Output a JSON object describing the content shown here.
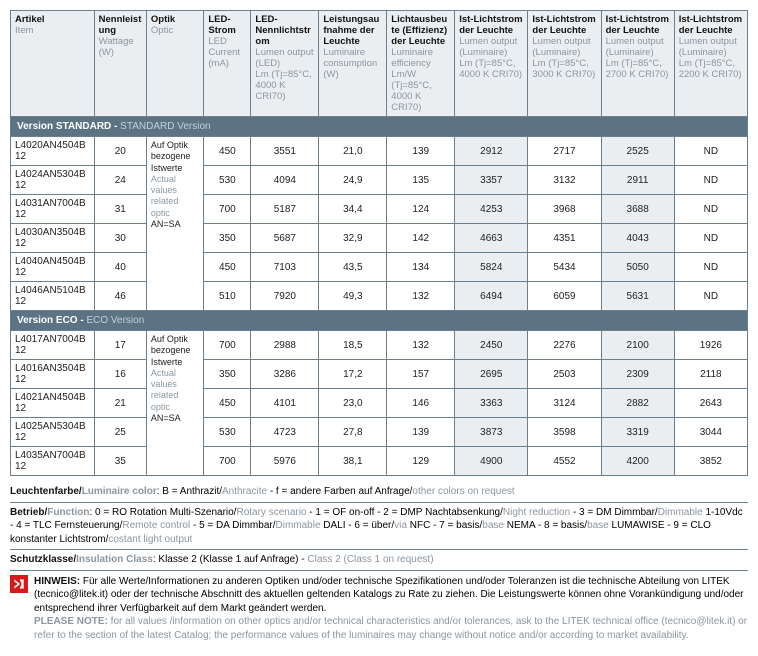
{
  "colors": {
    "header_bg": "#eaeef1",
    "section_bg": "#5c7383",
    "border": "#6a8090",
    "alt_bg": "#eaeef1",
    "text_muted": "#8b96a0",
    "hinweis_red": "#d7191c"
  },
  "headers": [
    {
      "de": "Artikel",
      "en": "Item"
    },
    {
      "de": "Nennleistung",
      "en": "Wattage",
      "unit": "(W)"
    },
    {
      "de": "Optik",
      "en": "Optic"
    },
    {
      "de": "LED-Strom",
      "en": "LED Current",
      "unit": "(mA)"
    },
    {
      "de": "LED-Nennlichtstrom",
      "en": "Lumen output (LED)",
      "unit": "Lm (Tj=85°C, 4000 K CRI70)"
    },
    {
      "de": "Leistungsaufnahme der Leuchte",
      "en": "Luminaire consumption",
      "unit": "(W)"
    },
    {
      "de": "Lichtausbeute (Effizienz) der Leuchte",
      "en": "Luminaire efficiency",
      "unit": "Lm/W (Tj=85°C, 4000 K CRI70)"
    },
    {
      "de": "Ist-Lichtstrom der Leuchte",
      "en": "Lumen output (Luminaire)",
      "unit": "Lm (Tj=85°C, 4000 K CRI70)"
    },
    {
      "de": "Ist-Lichtstrom der Leuchte",
      "en": "Lumen output (Luminaire)",
      "unit": "Lm (Tj=85°C, 3000 K CRI70)"
    },
    {
      "de": "Ist-Lichtstrom der Leuchte",
      "en": "Lumen output (Luminaire)",
      "unit": "Lm (Tj=85°C, 2700 K CRI70)"
    },
    {
      "de": "Ist-Lichtstrom der Leuchte",
      "en": "Lumen output (Luminaire)",
      "unit": "Lm (Tj=85°C, 2200 K CRI70)"
    }
  ],
  "optic_text": {
    "de1": "Auf Optik bezogene Istwerte",
    "en1": "Actual values related optic",
    "eq": "AN=SA"
  },
  "sections": [
    {
      "title_de": "Version STANDARD",
      "title_en": "STANDARD Version",
      "rows": [
        {
          "article": "L4020AN4504B12",
          "w": "20",
          "led": "450",
          "lumen": "3551",
          "power": "21,0",
          "eff": "139",
          "lm1": "2912",
          "lm2": "2717",
          "lm3": "2525",
          "lm4": "ND"
        },
        {
          "article": "L4024AN5304B12",
          "w": "24",
          "led": "530",
          "lumen": "4094",
          "power": "24,9",
          "eff": "135",
          "lm1": "3357",
          "lm2": "3132",
          "lm3": "2911",
          "lm4": "ND"
        },
        {
          "article": "L4031AN7004B12",
          "w": "31",
          "led": "700",
          "lumen": "5187",
          "power": "34,4",
          "eff": "124",
          "lm1": "4253",
          "lm2": "3968",
          "lm3": "3688",
          "lm4": "ND"
        },
        {
          "article": "L4030AN3504B12",
          "w": "30",
          "led": "350",
          "lumen": "5687",
          "power": "32,9",
          "eff": "142",
          "lm1": "4663",
          "lm2": "4351",
          "lm3": "4043",
          "lm4": "ND"
        },
        {
          "article": "L4040AN4504B12",
          "w": "40",
          "led": "450",
          "lumen": "7103",
          "power": "43,5",
          "eff": "134",
          "lm1": "5824",
          "lm2": "5434",
          "lm3": "5050",
          "lm4": "ND"
        },
        {
          "article": "L4046AN5104B12",
          "w": "46",
          "led": "510",
          "lumen": "7920",
          "power": "49,3",
          "eff": "132",
          "lm1": "6494",
          "lm2": "6059",
          "lm3": "5631",
          "lm4": "ND"
        }
      ]
    },
    {
      "title_de": "Version ECO",
      "title_en": "ECO Version",
      "rows": [
        {
          "article": "L4017AN7004B12",
          "w": "17",
          "led": "700",
          "lumen": "2988",
          "power": "18,5",
          "eff": "132",
          "lm1": "2450",
          "lm2": "2276",
          "lm3": "2100",
          "lm4": "1926"
        },
        {
          "article": "L4016AN3504B12",
          "w": "16",
          "led": "350",
          "lumen": "3286",
          "power": "17,2",
          "eff": "157",
          "lm1": "2695",
          "lm2": "2503",
          "lm3": "2309",
          "lm4": "2118"
        },
        {
          "article": "L4021AN4504B12",
          "w": "21",
          "led": "450",
          "lumen": "4101",
          "power": "23,0",
          "eff": "146",
          "lm1": "3363",
          "lm2": "3124",
          "lm3": "2882",
          "lm4": "2643"
        },
        {
          "article": "L4025AN5304B12",
          "w": "25",
          "led": "530",
          "lumen": "4723",
          "power": "27,8",
          "eff": "139",
          "lm1": "3873",
          "lm2": "3598",
          "lm3": "3319",
          "lm4": "3044"
        },
        {
          "article": "L4035AN7004B12",
          "w": "35",
          "led": "700",
          "lumen": "5976",
          "power": "38,1",
          "eff": "129",
          "lm1": "4900",
          "lm2": "4552",
          "lm3": "4200",
          "lm4": "3852"
        }
      ]
    }
  ],
  "notes": {
    "color": {
      "label_de": "Leuchtenfarbe",
      "label_en": "Luminaire color",
      "text_de": ": B = Anthrazit/",
      "text_en1": "Anthracite",
      "text_de2": " - f = andere Farben auf Anfrage/",
      "text_en2": "other colors on request"
    },
    "function": {
      "label_de": "Betrieb",
      "label_en": "Function",
      "text": ": 0 = RO Rotation Multi-Szenario/",
      "en1": "Rotary scenario",
      "t2": " - 1 = OF on-off - 2 = DMP Nachtabsenkung/",
      "en2": "Night reduction",
      "t3": " - 3 = DM Dimmbar/",
      "en3": "Dimmable",
      "t4": " 1-10Vdc - 4 = TLC Fernsteuerung/",
      "en4": "Remote control",
      "t5": " - 5 = DA Dimmbar/",
      "en5": "Dimmable",
      "t6": " DALI - 6 = über/",
      "en6": "via",
      "t7": " NFC - 7 = basis/",
      "en7": "base",
      "t8": " NEMA - 8 = basis/",
      "en8": "base",
      "t9": " LUMAWISE - 9 = CLO konstanter Lichtstrom/",
      "en9": "costant light output"
    },
    "insulation": {
      "label_de": "Schutzklasse",
      "label_en": "Insulation Class",
      "text_de": ": Klasse 2 (Klasse 1 auf Anfrage) - ",
      "text_en": "Class 2 (Class 1 on request)"
    },
    "hinweis": {
      "label": "HINWEIS:",
      "de": " Für alle Werte/Informationen zu anderen Optiken und/oder technische Spezifikationen und/oder Toleranzen ist die technische Abteilung von LITEK (tecnico@litek.it) oder der technische Abschnitt des aktuellen geltenden Katalogs zu Rate zu ziehen. Die Leistungswerte können ohne Vorankündigung und/oder entsprechend ihrer Verfügbarkeit auf dem Markt geändert werden.",
      "label_en": "PLEASE NOTE:",
      "en": " for all values /information on other optics and/or technical characteristics and/or tolerances, ask to the LITEK technical office (tecnico@litek.it) or refer to the  section of the latest Catalog; the performance values of the luminaires  may change without notice and/or according to market availability."
    }
  }
}
